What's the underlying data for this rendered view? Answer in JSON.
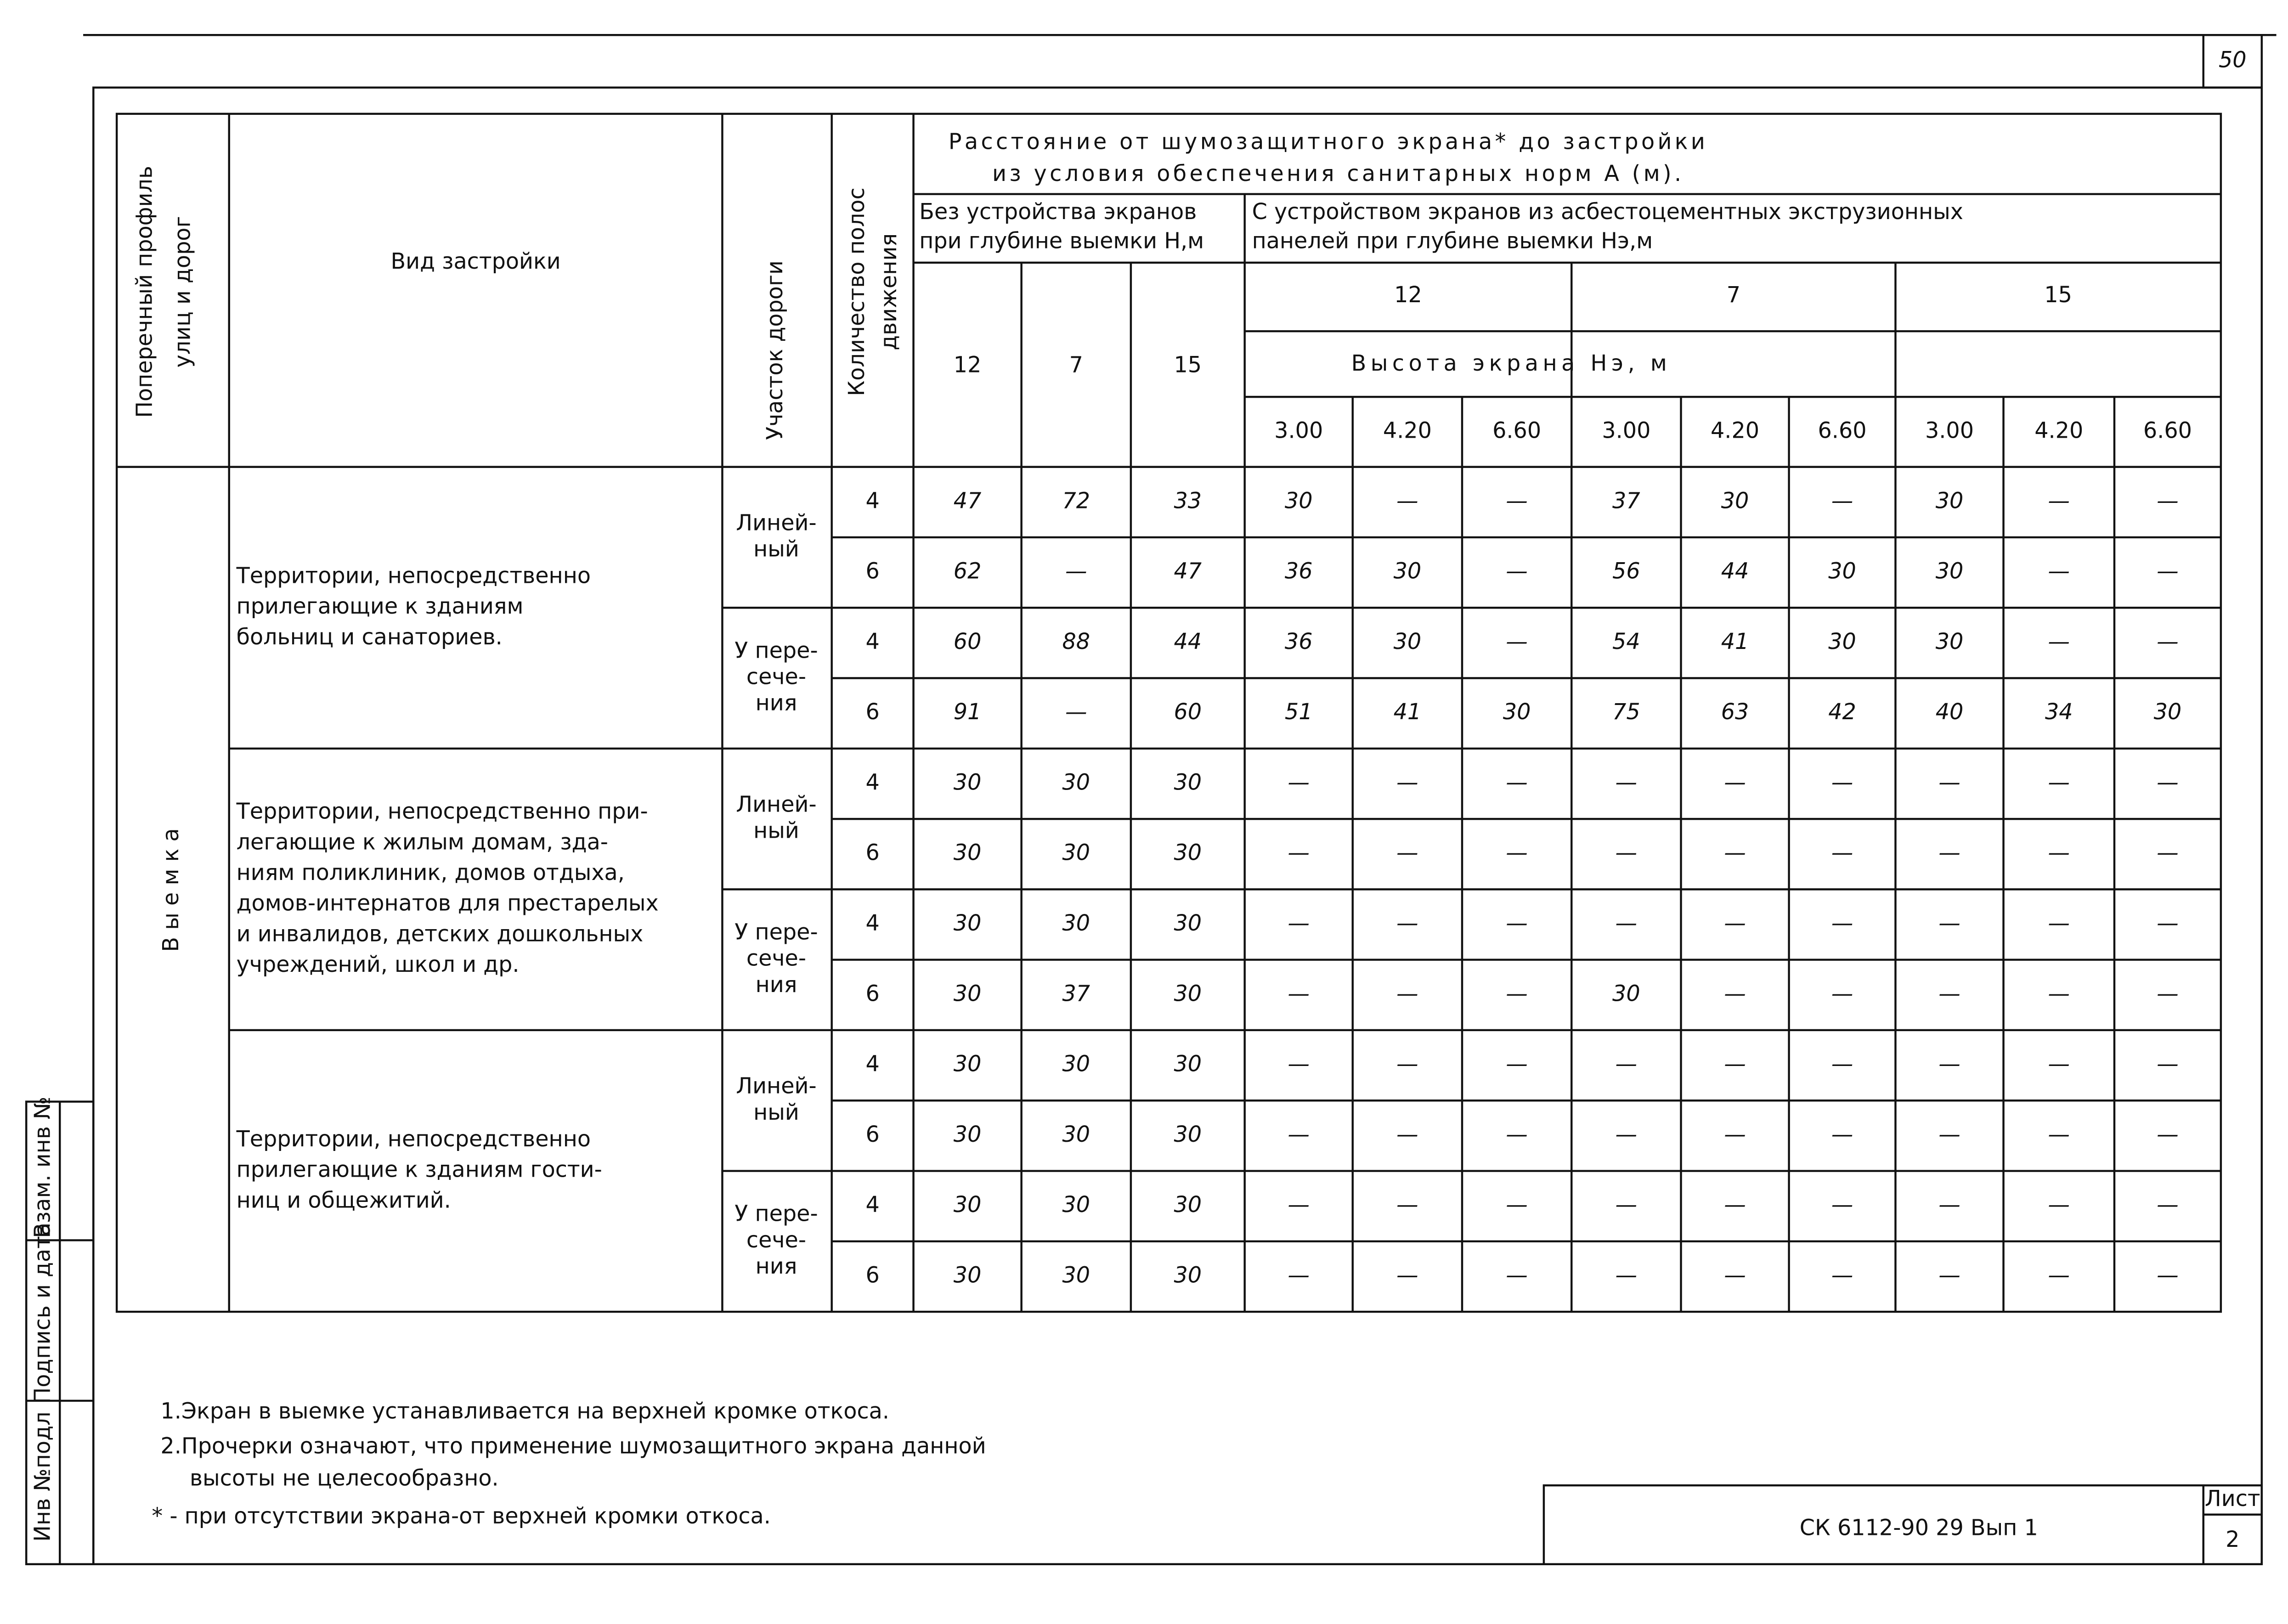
{
  "page_number": "50",
  "side_stamp": [
    "Инв №подл",
    "Подпись и дата",
    "Взам. инв №"
  ],
  "table": {
    "header": {
      "profile": [
        "Поперечный профиль",
        "улиц и дорог"
      ],
      "building_type": "Вид застройки",
      "road_section": "Участок дороги",
      "lanes": [
        "Количество полос",
        "движения"
      ],
      "distance_title": [
        "Расстояние от шумозащитного экрана* до застройки",
        "из условия обеспечения санитарных норм А (м)."
      ],
      "without_screen": [
        "Без устройства экранов",
        "при глубине выемки Н,м"
      ],
      "with_screen": [
        "С устройством экранов из асбестоцементных экструзионных",
        "панелей при глубине выемки Нэ,м"
      ],
      "depths_without": [
        "12",
        "7",
        "15"
      ],
      "depths_with": [
        "12",
        "7",
        "15"
      ],
      "screen_height": "Высота экрана Нэ, м",
      "heights": [
        "3.00",
        "4.20",
        "6.60",
        "3.00",
        "4.20",
        "6.60",
        "3.00",
        "4.20",
        "6.60"
      ]
    },
    "profile_value": "В ы е м к а",
    "groups": [
      {
        "building_type": [
          "Территории, непосредственно",
          "прилегающие к зданиям",
          "больниц и санаториев."
        ],
        "sections": [
          {
            "name": [
              "Линей-",
              "ный"
            ],
            "rows": [
              {
                "lanes": "4",
                "values": [
                  "47",
                  "72",
                  "33",
                  "30",
                  "—",
                  "—",
                  "37",
                  "30",
                  "—",
                  "30",
                  "—",
                  "—"
                ]
              },
              {
                "lanes": "6",
                "values": [
                  "62",
                  "—",
                  "47",
                  "36",
                  "30",
                  "—",
                  "56",
                  "44",
                  "30",
                  "30",
                  "—",
                  "—"
                ]
              }
            ]
          },
          {
            "name": [
              "У пере-",
              "сече-",
              "ния"
            ],
            "rows": [
              {
                "lanes": "4",
                "values": [
                  "60",
                  "88",
                  "44",
                  "36",
                  "30",
                  "—",
                  "54",
                  "41",
                  "30",
                  "30",
                  "—",
                  "—"
                ]
              },
              {
                "lanes": "6",
                "values": [
                  "91",
                  "—",
                  "60",
                  "51",
                  "41",
                  "30",
                  "75",
                  "63",
                  "42",
                  "40",
                  "34",
                  "30"
                ]
              }
            ]
          }
        ]
      },
      {
        "building_type": [
          "Территории, непосредственно при-",
          "легающие к жилым домам, зда-",
          "ниям поликлиник, домов отдыха,",
          "домов-интернатов для престарелых",
          "и инвалидов, детских дошкольных",
          "учреждений, школ и др."
        ],
        "sections": [
          {
            "name": [
              "Линей-",
              "ный"
            ],
            "rows": [
              {
                "lanes": "4",
                "values": [
                  "30",
                  "30",
                  "30",
                  "—",
                  "—",
                  "—",
                  "—",
                  "—",
                  "—",
                  "—",
                  "—",
                  "—"
                ]
              },
              {
                "lanes": "6",
                "values": [
                  "30",
                  "30",
                  "30",
                  "—",
                  "—",
                  "—",
                  "—",
                  "—",
                  "—",
                  "—",
                  "—",
                  "—"
                ]
              }
            ]
          },
          {
            "name": [
              "У пере-",
              "сече-",
              "ния"
            ],
            "rows": [
              {
                "lanes": "4",
                "values": [
                  "30",
                  "30",
                  "30",
                  "—",
                  "—",
                  "—",
                  "—",
                  "—",
                  "—",
                  "—",
                  "—",
                  "—"
                ]
              },
              {
                "lanes": "6",
                "values": [
                  "30",
                  "37",
                  "30",
                  "—",
                  "—",
                  "—",
                  "30",
                  "—",
                  "—",
                  "—",
                  "—",
                  "—"
                ]
              }
            ]
          }
        ]
      },
      {
        "building_type": [
          "Территории, непосредственно",
          "прилегающие к зданиям гости-",
          "ниц и общежитий."
        ],
        "sections": [
          {
            "name": [
              "Линей-",
              "ный"
            ],
            "rows": [
              {
                "lanes": "4",
                "values": [
                  "30",
                  "30",
                  "30",
                  "—",
                  "—",
                  "—",
                  "—",
                  "—",
                  "—",
                  "—",
                  "—",
                  "—"
                ]
              },
              {
                "lanes": "6",
                "values": [
                  "30",
                  "30",
                  "30",
                  "—",
                  "—",
                  "—",
                  "—",
                  "—",
                  "—",
                  "—",
                  "—",
                  "—"
                ]
              }
            ]
          },
          {
            "name": [
              "У пере-",
              "сече-",
              "ния"
            ],
            "rows": [
              {
                "lanes": "4",
                "values": [
                  "30",
                  "30",
                  "30",
                  "—",
                  "—",
                  "—",
                  "—",
                  "—",
                  "—",
                  "—",
                  "—",
                  "—"
                ]
              },
              {
                "lanes": "6",
                "values": [
                  "30",
                  "30",
                  "30",
                  "—",
                  "—",
                  "—",
                  "—",
                  "—",
                  "—",
                  "—",
                  "—",
                  "—"
                ]
              }
            ]
          }
        ]
      }
    ]
  },
  "notes": [
    "1.Экран в выемке устанавливается на верхней кромке откоса.",
    "2.Прочерки означают, что применение шумозащитного экрана данной",
    "высоты не целесообразно.",
    "* - при отсутствии экрана-от верхней кромки откоса."
  ],
  "title_block": {
    "code": "СК 6112-90 29 Вып 1",
    "sheet_label": "Лист",
    "sheet": "2"
  }
}
